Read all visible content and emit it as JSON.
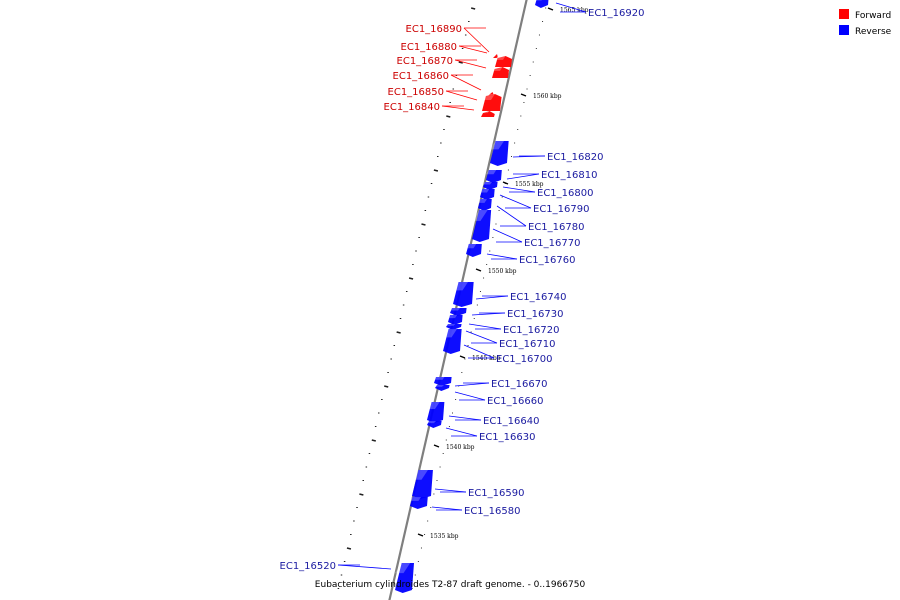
{
  "caption": "Eubacterium cylindroides T2-87 draft genome. - 0..1966750",
  "legend": {
    "items": [
      {
        "label": "Forward",
        "color": "#ff0000"
      },
      {
        "label": "Reverse",
        "color": "#0000ff"
      }
    ]
  },
  "colors": {
    "forward": "#ff0000",
    "forward_label": "#cc0000",
    "reverse": "#0000ff",
    "reverse_label": "#1a1aa0",
    "backbone": "#7f7f7f"
  },
  "scale": {
    "ticks": [
      {
        "label": "1565 kbp"
      },
      {
        "label": "1560 kbp"
      },
      {
        "label": "1555 kbp"
      },
      {
        "label": "1550 kbp"
      },
      {
        "label": "1545 kbp"
      },
      {
        "label": "1540 kbp"
      },
      {
        "label": "1535 kbp"
      }
    ]
  },
  "genes": [
    {
      "label": "EC1_16920",
      "strand": "reverse"
    },
    {
      "label": "EC1_16890",
      "strand": "forward"
    },
    {
      "label": "EC1_16880",
      "strand": "forward"
    },
    {
      "label": "EC1_16870",
      "strand": "forward"
    },
    {
      "label": "EC1_16860",
      "strand": "forward"
    },
    {
      "label": "EC1_16850",
      "strand": "forward"
    },
    {
      "label": "EC1_16840",
      "strand": "forward"
    },
    {
      "label": "EC1_16820",
      "strand": "reverse"
    },
    {
      "label": "EC1_16810",
      "strand": "reverse"
    },
    {
      "label": "EC1_16800",
      "strand": "reverse"
    },
    {
      "label": "EC1_16790",
      "strand": "reverse"
    },
    {
      "label": "EC1_16780",
      "strand": "reverse"
    },
    {
      "label": "EC1_16770",
      "strand": "reverse"
    },
    {
      "label": "EC1_16760",
      "strand": "reverse"
    },
    {
      "label": "EC1_16740",
      "strand": "reverse"
    },
    {
      "label": "EC1_16730",
      "strand": "reverse"
    },
    {
      "label": "EC1_16720",
      "strand": "reverse"
    },
    {
      "label": "EC1_16710",
      "strand": "reverse"
    },
    {
      "label": "EC1_16700",
      "strand": "reverse"
    },
    {
      "label": "EC1_16670",
      "strand": "reverse"
    },
    {
      "label": "EC1_16660",
      "strand": "reverse"
    },
    {
      "label": "EC1_16640",
      "strand": "reverse"
    },
    {
      "label": "EC1_16630",
      "strand": "reverse"
    },
    {
      "label": "EC1_16590",
      "strand": "reverse"
    },
    {
      "label": "EC1_16580",
      "strand": "reverse"
    },
    {
      "label": "EC1_16520",
      "strand": "reverse"
    }
  ]
}
